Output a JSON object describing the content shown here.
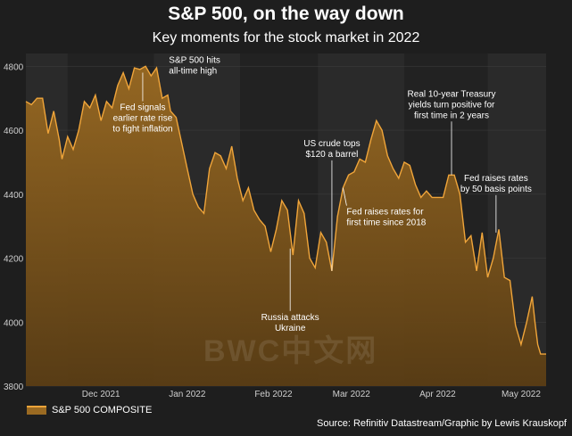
{
  "colors": {
    "background": "#1e1e1e",
    "band": "#2a2a2a",
    "line": "#f0a53a",
    "fill_top": "#9a6a22",
    "fill_bottom": "#5a3d14",
    "text": "#ffffff",
    "axis_text": "#cfcfcf"
  },
  "watermark": "BWC中文网",
  "chart_data": {
    "type": "area",
    "title": "S&P 500, on the way down",
    "subtitle": "Key moments for the stock market in 2022",
    "xlabel": "",
    "ylabel": "",
    "ylim": [
      3800,
      4840
    ],
    "yticks": [
      3800,
      4000,
      4200,
      4400,
      4600,
      4800
    ],
    "xticks": [
      {
        "label": "Dec 2021",
        "x": 15
      },
      {
        "label": "Jan 2022",
        "x": 46
      },
      {
        "label": "Feb 2022",
        "x": 77
      },
      {
        "label": "Mar 2022",
        "x": 105
      },
      {
        "label": "Apr 2022",
        "x": 136
      },
      {
        "label": "May 2022",
        "x": 166
      }
    ],
    "bands": [
      {
        "from": -12,
        "to": 3
      },
      {
        "from": 34,
        "to": 65
      },
      {
        "from": 93,
        "to": 124
      },
      {
        "from": 154,
        "to": 175
      }
    ],
    "xlim": [
      -12,
      175
    ],
    "series": [
      {
        "name": "S&P 500 COMPOSITE",
        "points": [
          [
            -12,
            4690
          ],
          [
            -10,
            4680
          ],
          [
            -8,
            4700
          ],
          [
            -6,
            4700
          ],
          [
            -4,
            4590
          ],
          [
            -2,
            4660
          ],
          [
            0,
            4570
          ],
          [
            1,
            4510
          ],
          [
            3,
            4580
          ],
          [
            5,
            4540
          ],
          [
            7,
            4600
          ],
          [
            9,
            4690
          ],
          [
            11,
            4670
          ],
          [
            13,
            4710
          ],
          [
            15,
            4630
          ],
          [
            17,
            4690
          ],
          [
            19,
            4670
          ],
          [
            21,
            4740
          ],
          [
            23,
            4780
          ],
          [
            25,
            4730
          ],
          [
            27,
            4795
          ],
          [
            29,
            4790
          ],
          [
            31,
            4800
          ],
          [
            33,
            4770
          ],
          [
            35,
            4795
          ],
          [
            37,
            4700
          ],
          [
            39,
            4710
          ],
          [
            40,
            4660
          ],
          [
            42,
            4640
          ],
          [
            44,
            4560
          ],
          [
            46,
            4480
          ],
          [
            48,
            4400
          ],
          [
            50,
            4360
          ],
          [
            52,
            4340
          ],
          [
            54,
            4480
          ],
          [
            56,
            4530
          ],
          [
            58,
            4520
          ],
          [
            60,
            4480
          ],
          [
            62,
            4550
          ],
          [
            64,
            4450
          ],
          [
            66,
            4380
          ],
          [
            68,
            4420
          ],
          [
            70,
            4350
          ],
          [
            72,
            4320
          ],
          [
            74,
            4300
          ],
          [
            76,
            4220
          ],
          [
            78,
            4290
          ],
          [
            80,
            4380
          ],
          [
            82,
            4350
          ],
          [
            84,
            4210
          ],
          [
            86,
            4380
          ],
          [
            88,
            4340
          ],
          [
            90,
            4200
          ],
          [
            92,
            4170
          ],
          [
            94,
            4280
          ],
          [
            96,
            4250
          ],
          [
            98,
            4160
          ],
          [
            100,
            4330
          ],
          [
            102,
            4420
          ],
          [
            104,
            4460
          ],
          [
            106,
            4470
          ],
          [
            108,
            4510
          ],
          [
            110,
            4500
          ],
          [
            112,
            4570
          ],
          [
            114,
            4630
          ],
          [
            116,
            4600
          ],
          [
            118,
            4520
          ],
          [
            120,
            4480
          ],
          [
            122,
            4450
          ],
          [
            124,
            4500
          ],
          [
            126,
            4490
          ],
          [
            128,
            4430
          ],
          [
            130,
            4390
          ],
          [
            132,
            4410
          ],
          [
            134,
            4390
          ],
          [
            136,
            4390
          ],
          [
            138,
            4390
          ],
          [
            140,
            4460
          ],
          [
            142,
            4460
          ],
          [
            144,
            4400
          ],
          [
            146,
            4250
          ],
          [
            148,
            4270
          ],
          [
            150,
            4160
          ],
          [
            152,
            4280
          ],
          [
            154,
            4140
          ],
          [
            156,
            4200
          ],
          [
            158,
            4290
          ],
          [
            160,
            4140
          ],
          [
            162,
            4130
          ],
          [
            164,
            3990
          ],
          [
            166,
            3930
          ],
          [
            168,
            4000
          ],
          [
            170,
            4080
          ],
          [
            171,
            4000
          ],
          [
            172,
            3930
          ],
          [
            173,
            3900
          ],
          [
            175,
            3900
          ]
        ]
      }
    ],
    "annotations": [
      {
        "lines": [
          "S&P 500 hits",
          "all-time high"
        ],
        "point": [
          33,
          4800
        ],
        "anchor": "start",
        "offset": [
          20,
          -4
        ],
        "line_to": null
      },
      {
        "lines": [
          "Fed signals",
          "earlier rate rise",
          "to fight inflation"
        ],
        "point": [
          30,
          4780
        ],
        "anchor": "middle",
        "offset": [
          0,
          42
        ],
        "line_to": "above"
      },
      {
        "lines": [
          "US crude tops",
          "$120 a barrel"
        ],
        "point": [
          98,
          4160
        ],
        "anchor": "middle",
        "offset": [
          0,
          -140
        ],
        "line_to": "below"
      },
      {
        "lines": [
          "Russia attacks",
          "Ukraine"
        ],
        "point": [
          83,
          4230
        ],
        "anchor": "middle",
        "offset": [
          0,
          80
        ],
        "line_to": "above"
      },
      {
        "lines": [
          "Fed raises rates for",
          "first time since 2018"
        ],
        "point": [
          102,
          4420
        ],
        "anchor": "start",
        "offset": [
          4,
          30
        ],
        "line_to": "above"
      },
      {
        "lines": [
          "Real 10-year Treasury",
          "yields turn positive for",
          "first time in 2 years"
        ],
        "point": [
          141,
          4460
        ],
        "anchor": "middle",
        "offset": [
          0,
          -88
        ],
        "line_to": "below"
      },
      {
        "lines": [
          "Fed raises rates",
          "by 50 basis points"
        ],
        "point": [
          157,
          4280
        ],
        "anchor": "middle",
        "offset": [
          0,
          -58
        ],
        "line_to": "below"
      }
    ]
  },
  "legend": {
    "label": "S&P 500 COMPOSITE"
  },
  "source": "Source: Refinitiv Datastream/Graphic by Lewis Krauskopf"
}
